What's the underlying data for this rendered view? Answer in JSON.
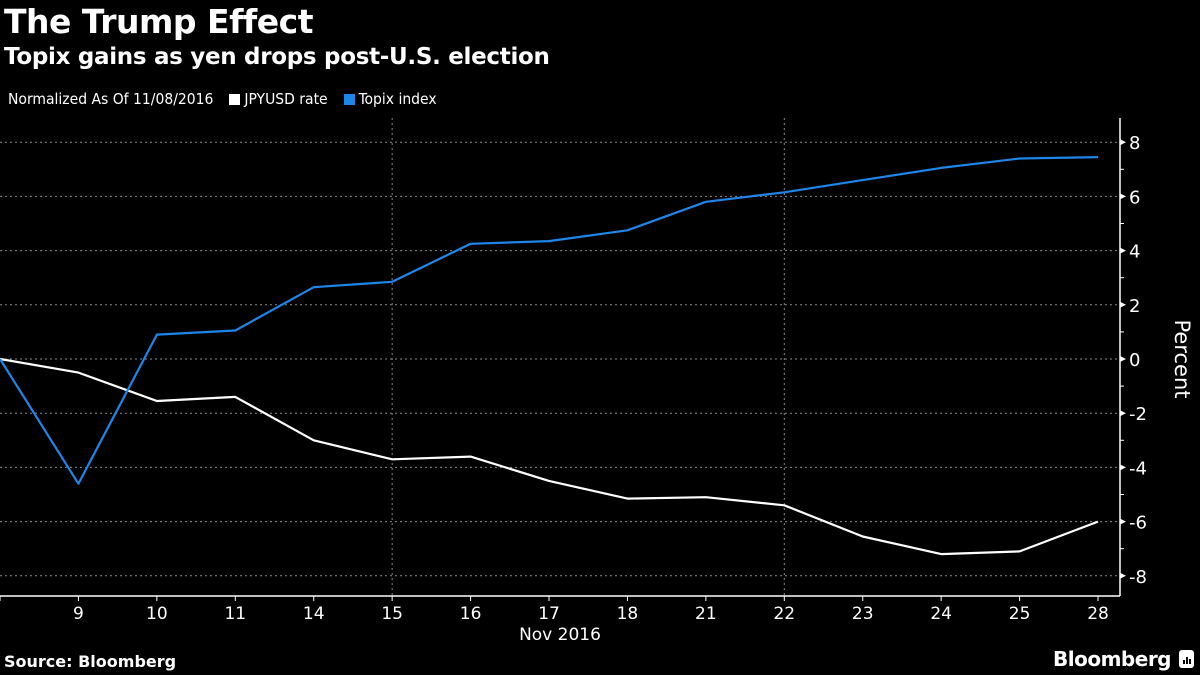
{
  "header": {
    "title": "The Trump Effect",
    "subtitle": "Topix gains as yen drops post-U.S. election"
  },
  "legend": {
    "note": "Normalized As Of 11/08/2016",
    "items": [
      {
        "label": "JPYUSD rate",
        "color": "#ffffff"
      },
      {
        "label": "Topix index",
        "color": "#1e86e8"
      }
    ]
  },
  "footer": {
    "source": "Source: Bloomberg",
    "brand": "Bloomberg"
  },
  "chart_data": {
    "type": "line",
    "title": "The Trump Effect",
    "subtitle": "Topix gains as yen drops post-U.S. election",
    "x": [
      "8",
      "9",
      "10",
      "11",
      "14",
      "15",
      "16",
      "17",
      "18",
      "21",
      "22",
      "23",
      "24",
      "25",
      "28"
    ],
    "x_tick_labels": [
      "9",
      "10",
      "11",
      "14",
      "15",
      "16",
      "17",
      "18",
      "21",
      "22",
      "23",
      "24",
      "25",
      "28"
    ],
    "xlabel": "Nov 2016",
    "ylabel": "Percent",
    "ylim": [
      -8.6,
      8.6
    ],
    "y_ticks": [
      8,
      6,
      4,
      2,
      0,
      -2,
      -4,
      -6,
      -8
    ],
    "y_axis_side": "right",
    "grid": true,
    "legend_position": "top-left",
    "series": [
      {
        "name": "JPYUSD rate",
        "color": "#ffffff",
        "values": [
          0,
          -0.5,
          -1.55,
          -1.4,
          -3.0,
          -3.7,
          -3.6,
          -4.5,
          -5.15,
          -5.1,
          -5.4,
          -6.55,
          -7.2,
          -7.1,
          -6.0
        ]
      },
      {
        "name": "Topix index",
        "color": "#1e86e8",
        "values": [
          0,
          -4.6,
          0.9,
          1.05,
          2.65,
          2.85,
          4.25,
          4.35,
          4.75,
          5.8,
          6.15,
          6.6,
          7.05,
          7.4,
          7.45
        ]
      }
    ]
  }
}
